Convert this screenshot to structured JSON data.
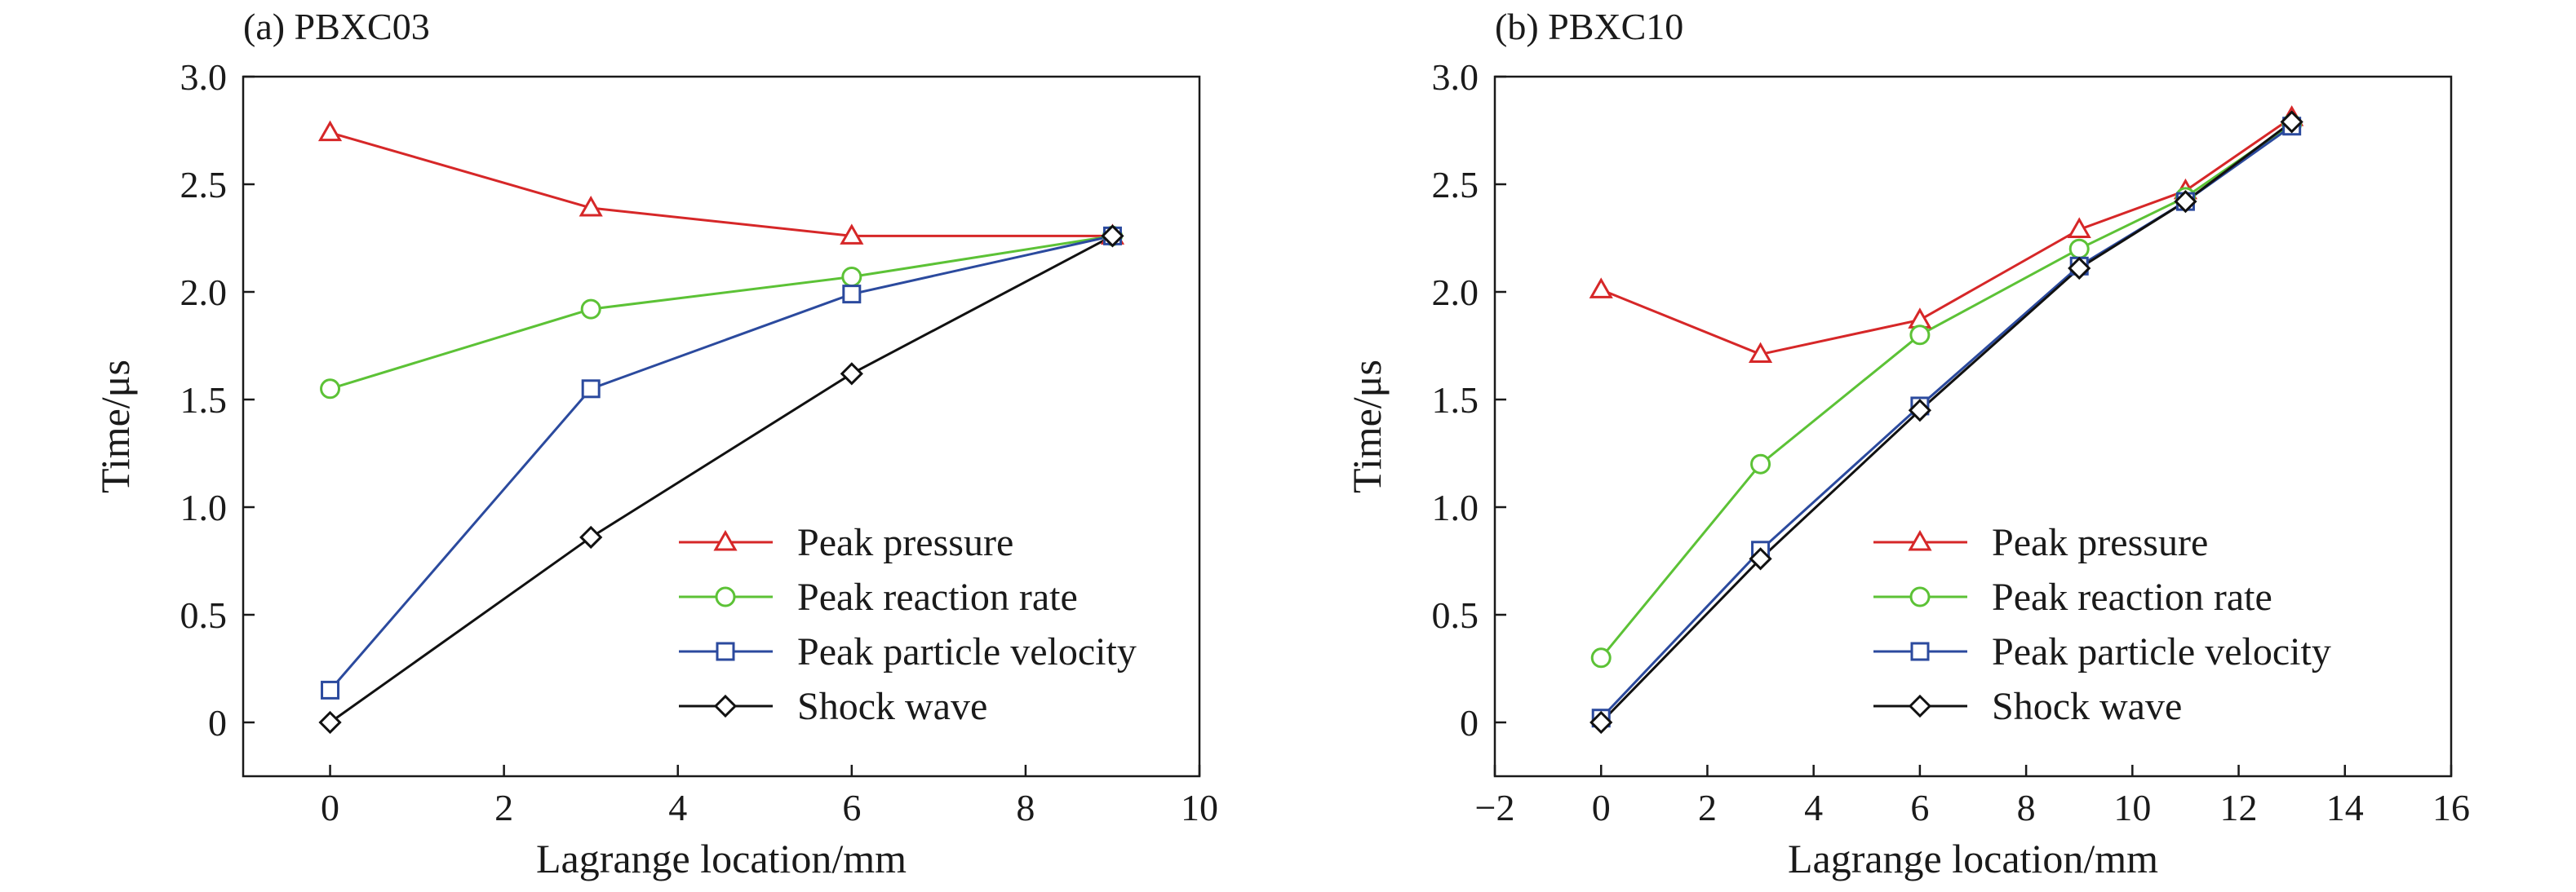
{
  "chart_data": [
    {
      "type": "line",
      "title": "(a) PBXC03",
      "xlabel": "Lagrange location/mm",
      "ylabel": "Time/μs",
      "xlim": [
        -1,
        10
      ],
      "ylim": [
        -0.25,
        3.0
      ],
      "xticks": [
        0,
        2,
        4,
        6,
        8,
        10
      ],
      "xtick_labels": [
        "0",
        "2",
        "4",
        "6",
        "8",
        "10"
      ],
      "yticks": [
        0,
        0.5,
        1.0,
        1.5,
        2.0,
        2.5,
        3.0
      ],
      "ytick_labels": [
        "0",
        "0.5",
        "1.0",
        "1.5",
        "2.0",
        "2.5",
        "3.0"
      ],
      "grid": false,
      "legend_position": "bottom-right",
      "series": [
        {
          "name": "Peak pressure",
          "color": "#d62728",
          "marker": "triangle",
          "x": [
            0,
            3,
            6,
            9
          ],
          "y": [
            2.74,
            2.39,
            2.26,
            2.26
          ]
        },
        {
          "name": "Peak reaction rate",
          "color": "#5cc236",
          "marker": "circle",
          "x": [
            0,
            3,
            6,
            9
          ],
          "y": [
            1.55,
            1.92,
            2.07,
            2.26
          ]
        },
        {
          "name": "Peak particle velocity",
          "color": "#2b4a9e",
          "marker": "square",
          "x": [
            0,
            3,
            6,
            9
          ],
          "y": [
            0.15,
            1.55,
            1.99,
            2.26
          ]
        },
        {
          "name": "Shock wave",
          "color": "#111111",
          "marker": "diamond",
          "x": [
            0,
            3,
            6,
            9
          ],
          "y": [
            0.0,
            0.86,
            1.62,
            2.26
          ]
        }
      ]
    },
    {
      "type": "line",
      "title": "(b) PBXC10",
      "xlabel": "Lagrange location/mm",
      "ylabel": "Time/μs",
      "xlim": [
        -2,
        16
      ],
      "ylim": [
        -0.25,
        3.0
      ],
      "xticks": [
        -2,
        0,
        2,
        4,
        6,
        8,
        10,
        12,
        14,
        16
      ],
      "xtick_labels": [
        "−2",
        "0",
        "2",
        "4",
        "6",
        "8",
        "10",
        "12",
        "14",
        "16"
      ],
      "yticks": [
        0,
        0.5,
        1.0,
        1.5,
        2.0,
        2.5,
        3.0
      ],
      "ytick_labels": [
        "0",
        "0.5",
        "1.0",
        "1.5",
        "2.0",
        "2.5",
        "3.0"
      ],
      "grid": false,
      "legend_position": "bottom-right",
      "series": [
        {
          "name": "Peak pressure",
          "color": "#d62728",
          "marker": "triangle",
          "x": [
            0,
            3,
            6,
            9,
            11,
            13
          ],
          "y": [
            2.01,
            1.71,
            1.87,
            2.29,
            2.47,
            2.81
          ]
        },
        {
          "name": "Peak reaction rate",
          "color": "#5cc236",
          "marker": "circle",
          "x": [
            0,
            3,
            6,
            9,
            11,
            13
          ],
          "y": [
            0.3,
            1.2,
            1.8,
            2.2,
            2.44,
            2.78
          ]
        },
        {
          "name": "Peak particle velocity",
          "color": "#2b4a9e",
          "marker": "square",
          "x": [
            0,
            3,
            6,
            9,
            11,
            13
          ],
          "y": [
            0.02,
            0.8,
            1.47,
            2.12,
            2.42,
            2.77
          ]
        },
        {
          "name": "Shock wave",
          "color": "#111111",
          "marker": "diamond",
          "x": [
            0,
            3,
            6,
            9,
            11,
            13
          ],
          "y": [
            0.0,
            0.76,
            1.45,
            2.11,
            2.42,
            2.79
          ]
        }
      ]
    }
  ]
}
